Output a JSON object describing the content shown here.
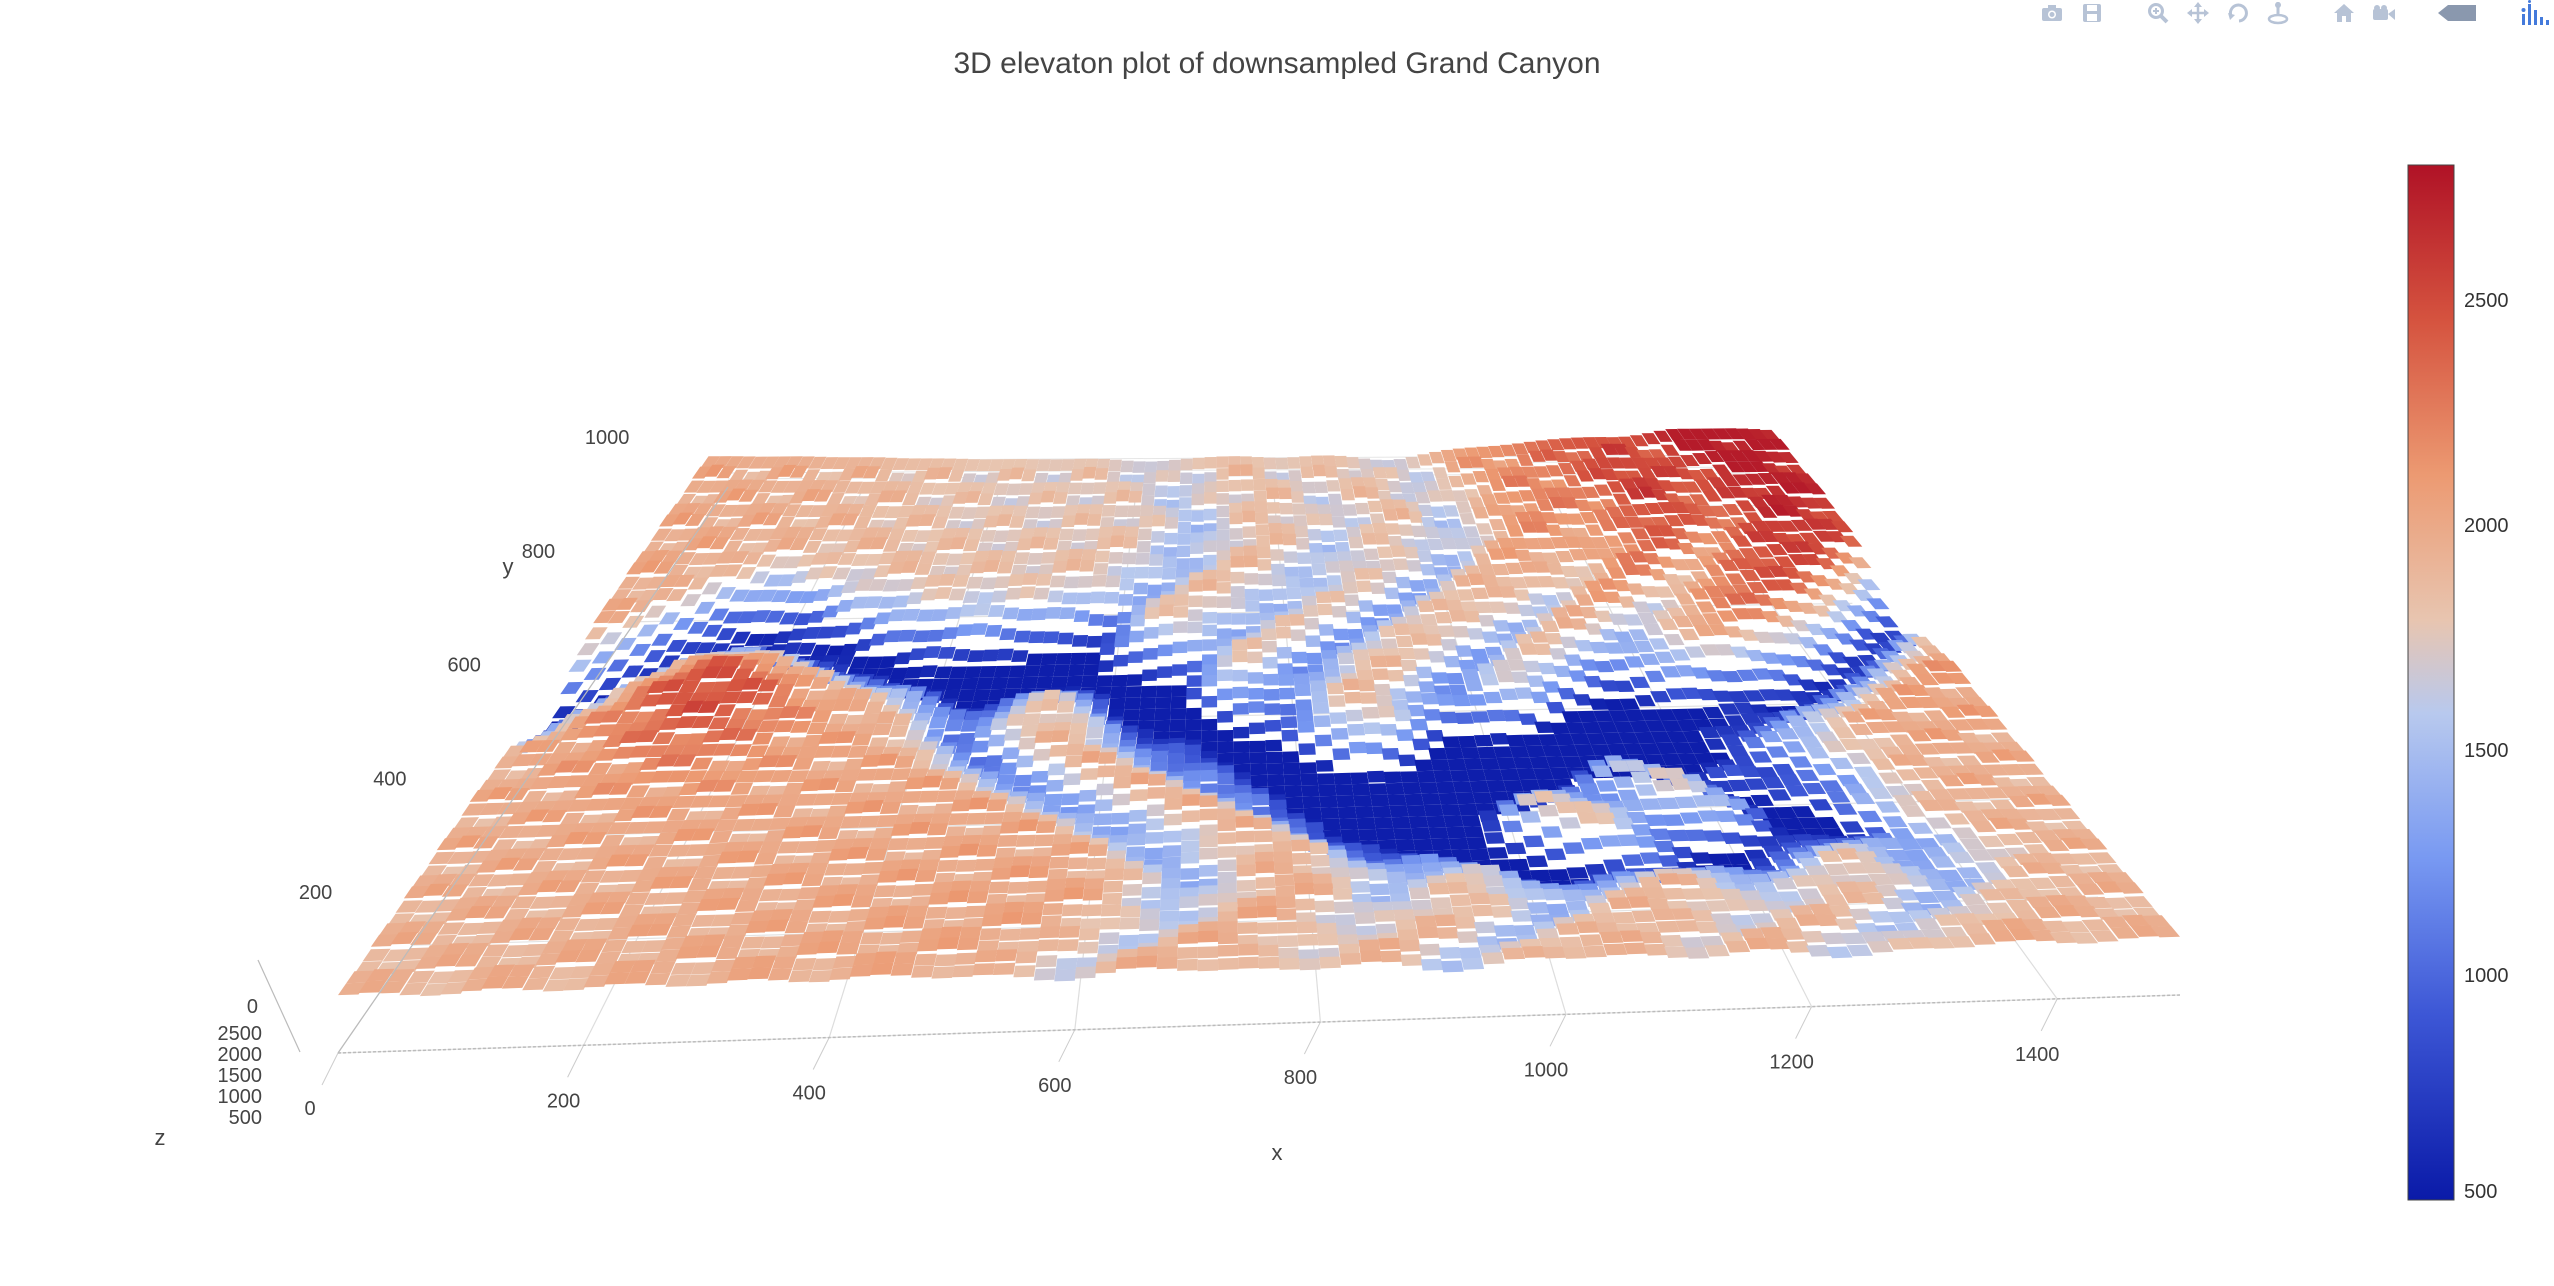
{
  "chart_data": {
    "type": "surface",
    "title": "3D elevaton plot of downsampled Grand Canyon",
    "axes": {
      "x": {
        "label": "x",
        "ticks": [
          0,
          200,
          400,
          600,
          800,
          1000,
          1200,
          1400
        ],
        "range": [
          0,
          1500
        ]
      },
      "y": {
        "label": "y",
        "ticks": [
          0,
          200,
          400,
          600,
          800,
          1000
        ],
        "range": [
          0,
          1050
        ]
      },
      "z": {
        "label": "z",
        "ticks": [
          500,
          1000,
          1500,
          2000,
          2500
        ],
        "range": [
          500,
          2800
        ]
      }
    },
    "grid": true,
    "colorscale": {
      "name": "coolwarm",
      "stops": [
        [
          0.0,
          "#0a1aa8"
        ],
        [
          0.18,
          "#3d57d6"
        ],
        [
          0.33,
          "#7899f2"
        ],
        [
          0.47,
          "#b8c9ee"
        ],
        [
          0.56,
          "#e8c5b0"
        ],
        [
          0.7,
          "#ec9a72"
        ],
        [
          0.85,
          "#d5533f"
        ],
        [
          1.0,
          "#b01226"
        ]
      ],
      "cmin": 500,
      "cmax": 2800,
      "ticks": [
        500,
        1000,
        1500,
        2000,
        2500
      ]
    },
    "surface_description_ranges": {
      "z_min": 500,
      "z_max": 2750
    }
  },
  "modebar": {
    "buttons": [
      {
        "name": "camera-icon"
      },
      {
        "name": "save-icon"
      },
      {
        "name": "zoom-icon"
      },
      {
        "name": "pan-icon"
      },
      {
        "name": "orbit-icon"
      },
      {
        "name": "turntable-icon"
      },
      {
        "name": "home-icon"
      },
      {
        "name": "video-camera-icon"
      },
      {
        "name": "hover-toggle-icon"
      },
      {
        "name": "plotly-logo-icon"
      }
    ]
  }
}
